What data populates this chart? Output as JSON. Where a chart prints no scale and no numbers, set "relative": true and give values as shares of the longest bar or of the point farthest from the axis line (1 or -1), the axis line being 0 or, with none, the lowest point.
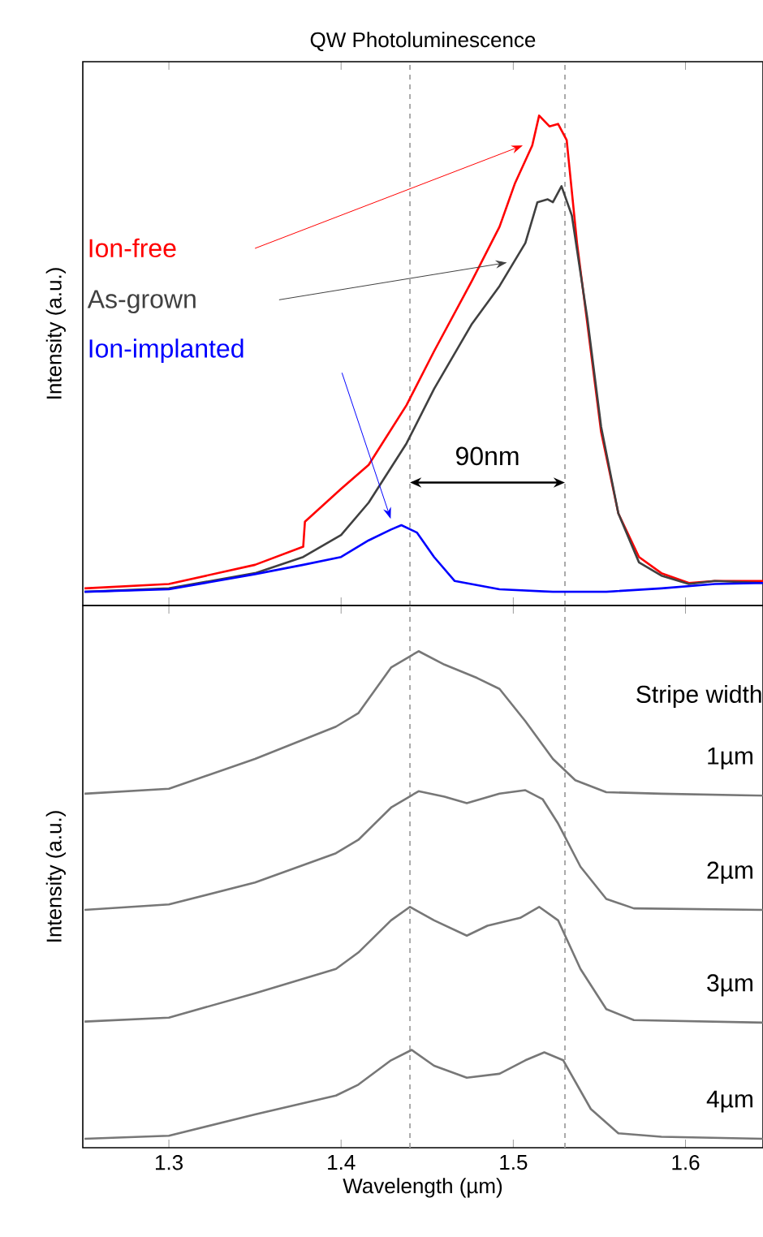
{
  "chart_data": [
    {
      "type": "line",
      "title": "QW Photoluminescence",
      "ylabel": "Intensity (a.u.)",
      "relative": true,
      "xlim": [
        1.25,
        1.645
      ],
      "xticks": [
        1.3,
        1.4,
        1.5,
        1.6
      ],
      "tick_labels": false,
      "annotations": [
        "90nm"
      ],
      "ref_lines": [
        {
          "axis": "x",
          "value": 1.44,
          "color": "#aaaaaa",
          "line_style": "dashed"
        },
        {
          "axis": "x",
          "value": 1.53,
          "color": "#aaaaaa",
          "line_style": "dashed"
        }
      ],
      "series": [
        {
          "name": "Ion-free",
          "color": "#ff0000",
          "x": [
            1.251,
            1.3,
            1.35,
            1.378,
            1.379,
            1.4,
            1.416,
            1.438,
            1.454,
            1.476,
            1.492,
            1.501,
            1.511,
            1.515,
            1.521,
            1.526,
            1.531,
            1.537,
            1.543,
            1.551,
            1.561,
            1.573,
            1.586,
            1.602,
            1.617,
            1.645
          ],
          "values": [
            0.035,
            0.044,
            0.083,
            0.12,
            0.171,
            0.238,
            0.287,
            0.409,
            0.519,
            0.663,
            0.773,
            0.862,
            0.939,
            1.0,
            0.978,
            0.983,
            0.95,
            0.74,
            0.575,
            0.354,
            0.188,
            0.099,
            0.066,
            0.046,
            0.05,
            0.05
          ]
        },
        {
          "name": "As-grown",
          "color": "#404040",
          "x": [
            1.251,
            1.3,
            1.35,
            1.378,
            1.4,
            1.416,
            1.438,
            1.454,
            1.476,
            1.492,
            1.507,
            1.514,
            1.52,
            1.523,
            1.528,
            1.534,
            1.543,
            1.551,
            1.561,
            1.573,
            1.586,
            1.602,
            1.617,
            1.645
          ],
          "values": [
            0.028,
            0.035,
            0.066,
            0.099,
            0.144,
            0.21,
            0.331,
            0.442,
            0.575,
            0.652,
            0.74,
            0.823,
            0.829,
            0.823,
            0.856,
            0.796,
            0.586,
            0.365,
            0.188,
            0.088,
            0.061,
            0.044,
            0.05,
            0.046
          ]
        },
        {
          "name": "Ion-implanted",
          "color": "#0000ff",
          "x": [
            1.251,
            1.3,
            1.35,
            1.378,
            1.4,
            1.416,
            1.429,
            1.435,
            1.444,
            1.454,
            1.466,
            1.492,
            1.523,
            1.554,
            1.586,
            1.617,
            1.645
          ],
          "values": [
            0.028,
            0.033,
            0.064,
            0.083,
            0.099,
            0.133,
            0.155,
            0.164,
            0.149,
            0.099,
            0.05,
            0.033,
            0.028,
            0.028,
            0.035,
            0.044,
            0.046
          ]
        }
      ]
    },
    {
      "type": "line",
      "ylabel": "Intensity (a.u.)",
      "xlabel": "Wavelength (µm)",
      "legend_title": "Stripe width",
      "relative": true,
      "xlim": [
        1.25,
        1.645
      ],
      "xticks": [
        1.3,
        1.4,
        1.5,
        1.6
      ],
      "tick_labels": "x",
      "ref_lines": [
        {
          "axis": "x",
          "value": 1.44,
          "color": "#aaaaaa",
          "line_style": "dashed"
        },
        {
          "axis": "x",
          "value": 1.53,
          "color": "#aaaaaa",
          "line_style": "dashed"
        }
      ],
      "series": [
        {
          "name": "1µm",
          "color": "#777777",
          "x": [
            1.251,
            1.3,
            1.35,
            1.397,
            1.41,
            1.429,
            1.445,
            1.46,
            1.479,
            1.492,
            1.507,
            1.523,
            1.536,
            1.554,
            1.586,
            1.645
          ],
          "values": [
            0.713,
            0.723,
            0.783,
            0.848,
            0.875,
            0.967,
            1.0,
            0.973,
            0.946,
            0.924,
            0.859,
            0.783,
            0.74,
            0.716,
            0.713,
            0.709
          ]
        },
        {
          "name": "2µm",
          "color": "#777777",
          "x": [
            1.251,
            1.3,
            1.35,
            1.397,
            1.41,
            1.429,
            1.445,
            1.46,
            1.473,
            1.492,
            1.507,
            1.517,
            1.526,
            1.539,
            1.554,
            1.57,
            1.645
          ],
          "values": [
            0.479,
            0.49,
            0.534,
            0.593,
            0.62,
            0.685,
            0.718,
            0.707,
            0.694,
            0.713,
            0.72,
            0.702,
            0.653,
            0.566,
            0.501,
            0.482,
            0.479
          ]
        },
        {
          "name": "3µm",
          "color": "#777777",
          "x": [
            1.251,
            1.3,
            1.35,
            1.397,
            1.41,
            1.429,
            1.44,
            1.454,
            1.473,
            1.485,
            1.504,
            1.515,
            1.526,
            1.539,
            1.554,
            1.57,
            1.645
          ],
          "values": [
            0.254,
            0.262,
            0.311,
            0.36,
            0.393,
            0.458,
            0.485,
            0.458,
            0.427,
            0.447,
            0.463,
            0.485,
            0.458,
            0.36,
            0.279,
            0.257,
            0.252
          ]
        },
        {
          "name": "4µm",
          "color": "#777777",
          "x": [
            1.251,
            1.3,
            1.35,
            1.397,
            1.41,
            1.429,
            1.441,
            1.454,
            1.473,
            1.492,
            1.507,
            1.518,
            1.529,
            1.545,
            1.561,
            1.586,
            1.645
          ],
          "values": [
            0.018,
            0.024,
            0.067,
            0.105,
            0.127,
            0.176,
            0.197,
            0.165,
            0.141,
            0.149,
            0.176,
            0.192,
            0.176,
            0.078,
            0.029,
            0.022,
            0.018
          ]
        }
      ]
    }
  ]
}
